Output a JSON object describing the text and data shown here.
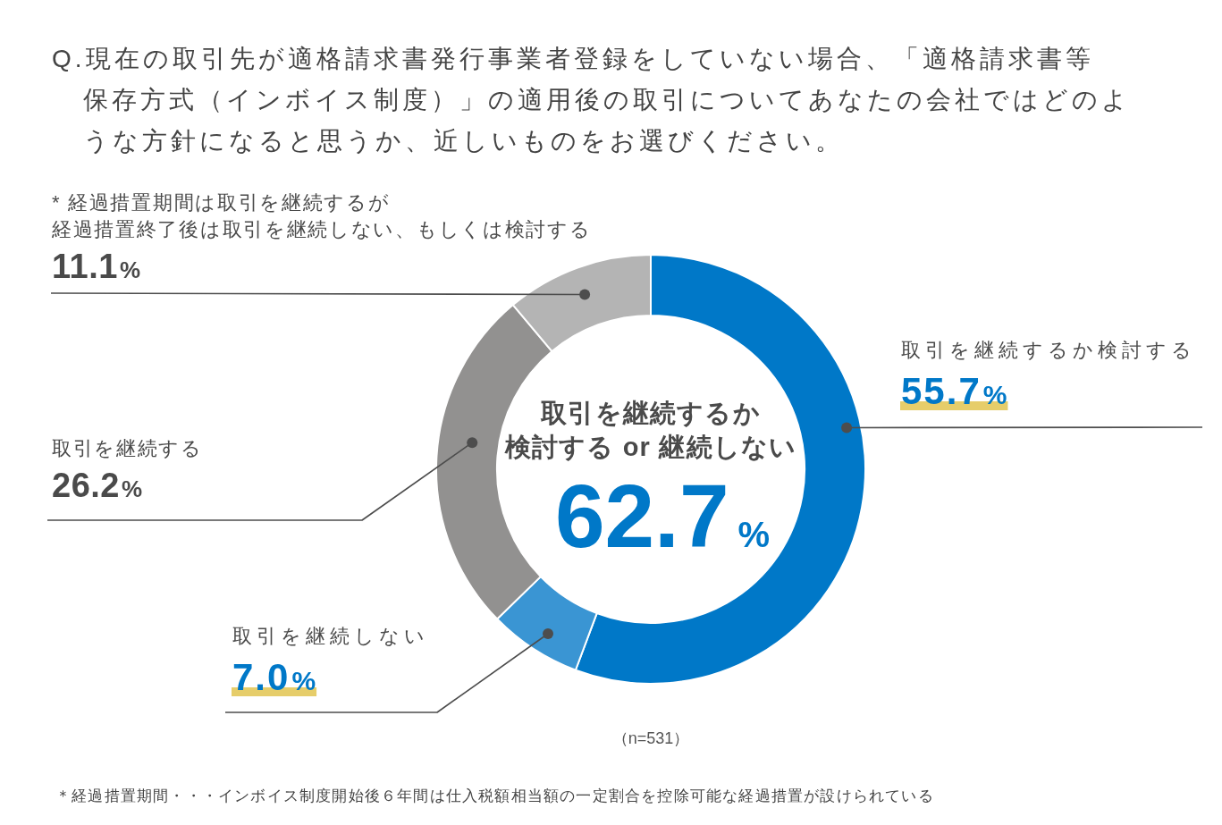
{
  "chart_data": {
    "type": "donut",
    "title": "Q.現在の取引先が適格請求書発行事業者登録をしていない場合、「適格請求書等保存方式（インボイス制度）」の適用後の取引についてあなたの会社ではどのような方針になると思うか、近しいものをお選びください。",
    "categories": [
      "取引を継続するか検討する",
      "取引を継続しない",
      "取引を継続する",
      "* 経過措置期間は取引を継続するが経過措置終了後は取引を継続しない、もしくは検討する"
    ],
    "values": [
      55.7,
      7.0,
      26.2,
      11.1
    ],
    "colors": [
      "#0078c8",
      "#3a95d3",
      "#929190",
      "#b4b4b4"
    ],
    "value_labels": [
      "55.7%",
      "7.0%",
      "26.2%",
      "11.1%"
    ],
    "annotations": [
      "取引を継続するか検討する or 継続しない",
      "62.7%",
      "（n=531）",
      "＊経過措置期間・・・インボイス制度開始後６年間は仕入税額相当額の一定割合を控除可能な経過措置が設けられている"
    ]
  }
}
